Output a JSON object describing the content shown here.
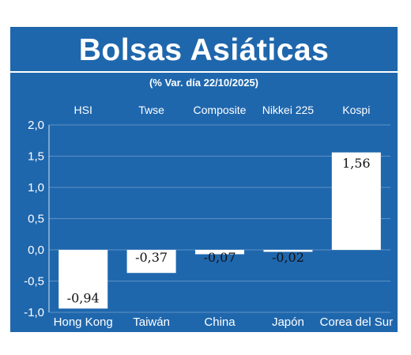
{
  "title": "Bolsas Asiáticas",
  "subtitle": "(% Var. día  22/10/2025)",
  "colors": {
    "background": "#1f67ad",
    "bar": "#ffffff",
    "text": "#ffffff",
    "value_text": "#111111"
  },
  "chart_data": {
    "type": "bar",
    "title": "Bolsas Asiáticas",
    "subtitle": "(% Var. día  22/10/2025)",
    "indices": [
      "HSI",
      "Twse",
      "Composite",
      "Nikkei 225",
      "Kospi"
    ],
    "categories": [
      "Hong Kong",
      "Taiwán",
      "China",
      "Japón",
      "Corea del Sur"
    ],
    "values": [
      -0.94,
      -0.37,
      -0.07,
      -0.02,
      1.56
    ],
    "value_labels": [
      "-0,94",
      "-0,37",
      "-0,07",
      "-0,02",
      "1,56"
    ],
    "yticks": [
      "2,0",
      "1,5",
      "1,0",
      "0,5",
      "0,0",
      "-0,5",
      "-1,0"
    ],
    "ytick_values": [
      2.0,
      1.5,
      1.0,
      0.5,
      0.0,
      -0.5,
      -1.0
    ],
    "ylim": [
      -1.0,
      2.0
    ],
    "grid": true,
    "xlabel": "",
    "ylabel": ""
  }
}
